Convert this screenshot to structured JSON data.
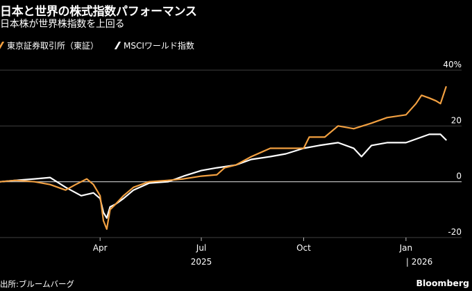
{
  "header": {
    "title": "日本と世界の株式指数パフォーマンス",
    "subtitle": "日本株が世界株指数を上回る"
  },
  "footer": {
    "source": "出所:ブルームバーグ",
    "brand": "Bloomberg"
  },
  "colors": {
    "background": "#000000",
    "topix": "#f2a041",
    "msci": "#ffffff",
    "grid": "#3f3f3f",
    "zero_line": "#cfcfcf"
  },
  "chart_data": {
    "type": "line",
    "title": "日本と世界の株式指数パフォーマンス",
    "subtitle": "日本株が世界株指数を上回る",
    "y_unit": "%",
    "ylim": [
      -20,
      40
    ],
    "y_ticks": [
      40,
      20,
      0,
      -20
    ],
    "y_tick_labels": [
      "40%",
      "20",
      "0",
      "-20"
    ],
    "x_ticks": [
      {
        "date": "2025-04-01",
        "label": "Apr"
      },
      {
        "date": "2025-07-01",
        "label": "Jul"
      },
      {
        "date": "2025-10-01",
        "label": "Oct"
      },
      {
        "date": "2026-01-01",
        "label": "Jan"
      }
    ],
    "year_labels": [
      {
        "date": "2025-07-01",
        "label": "2025"
      },
      {
        "date": "2026-01-01",
        "label": "| 2026"
      }
    ],
    "grid": "horizontal",
    "legend_position": "top-left",
    "series": [
      {
        "name": "東京証券取引所（東証）",
        "color": "#f2a041",
        "points": [
          [
            "2025-01-01",
            0
          ],
          [
            "2025-01-15",
            0.5
          ],
          [
            "2025-02-01",
            0
          ],
          [
            "2025-02-15",
            -1
          ],
          [
            "2025-03-01",
            -3
          ],
          [
            "2025-03-10",
            -1
          ],
          [
            "2025-03-20",
            1
          ],
          [
            "2025-03-26",
            -1
          ],
          [
            "2025-04-01",
            -5
          ],
          [
            "2025-04-04",
            -14
          ],
          [
            "2025-04-07",
            -17
          ],
          [
            "2025-04-10",
            -10
          ],
          [
            "2025-04-15",
            -8
          ],
          [
            "2025-04-22",
            -5
          ],
          [
            "2025-05-01",
            -2
          ],
          [
            "2025-05-15",
            0
          ],
          [
            "2025-06-01",
            0.5
          ],
          [
            "2025-06-15",
            1
          ],
          [
            "2025-07-01",
            2
          ],
          [
            "2025-07-15",
            2.5
          ],
          [
            "2025-07-22",
            5
          ],
          [
            "2025-08-01",
            6
          ],
          [
            "2025-08-15",
            9
          ],
          [
            "2025-09-01",
            12
          ],
          [
            "2025-09-15",
            12
          ],
          [
            "2025-10-01",
            12
          ],
          [
            "2025-10-06",
            16
          ],
          [
            "2025-10-20",
            16
          ],
          [
            "2025-11-01",
            20
          ],
          [
            "2025-11-15",
            19
          ],
          [
            "2025-12-01",
            21
          ],
          [
            "2025-12-15",
            23
          ],
          [
            "2026-01-01",
            24
          ],
          [
            "2026-01-10",
            28
          ],
          [
            "2026-01-15",
            31
          ],
          [
            "2026-01-22",
            30
          ],
          [
            "2026-01-28",
            29
          ],
          [
            "2026-02-01",
            28
          ],
          [
            "2026-02-06",
            34
          ]
        ]
      },
      {
        "name": "MSCIワールド指数",
        "color": "#ffffff",
        "points": [
          [
            "2025-01-01",
            0
          ],
          [
            "2025-01-15",
            0.5
          ],
          [
            "2025-02-01",
            1
          ],
          [
            "2025-02-15",
            1.5
          ],
          [
            "2025-03-01",
            -2
          ],
          [
            "2025-03-15",
            -5
          ],
          [
            "2025-03-26",
            -4
          ],
          [
            "2025-04-01",
            -6
          ],
          [
            "2025-04-04",
            -11
          ],
          [
            "2025-04-07",
            -13
          ],
          [
            "2025-04-10",
            -9
          ],
          [
            "2025-04-15",
            -8
          ],
          [
            "2025-04-22",
            -6
          ],
          [
            "2025-05-01",
            -3
          ],
          [
            "2025-05-15",
            -0.5
          ],
          [
            "2025-06-01",
            0
          ],
          [
            "2025-06-15",
            2
          ],
          [
            "2025-07-01",
            4
          ],
          [
            "2025-07-15",
            5
          ],
          [
            "2025-08-01",
            6
          ],
          [
            "2025-08-15",
            8
          ],
          [
            "2025-09-01",
            9
          ],
          [
            "2025-09-15",
            10
          ],
          [
            "2025-10-01",
            12
          ],
          [
            "2025-10-15",
            13
          ],
          [
            "2025-11-01",
            14
          ],
          [
            "2025-11-15",
            12
          ],
          [
            "2025-11-22",
            9
          ],
          [
            "2025-12-01",
            13
          ],
          [
            "2025-12-15",
            14
          ],
          [
            "2026-01-01",
            14
          ],
          [
            "2026-01-15",
            16
          ],
          [
            "2026-01-22",
            17
          ],
          [
            "2026-02-01",
            17
          ],
          [
            "2026-02-06",
            15
          ]
        ]
      }
    ]
  }
}
